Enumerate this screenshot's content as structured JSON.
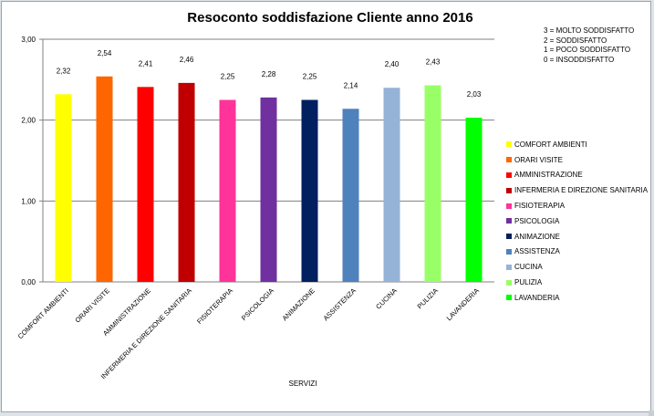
{
  "chart_data": {
    "type": "bar",
    "title": "Resoconto soddisfazione Cliente anno 2016",
    "xlabel": "SERVIZI",
    "ylabel": "",
    "ylim": [
      0,
      3
    ],
    "yticks": [
      "0,00",
      "1,00",
      "2,00",
      "3,00"
    ],
    "categories": [
      "COMFORT AMBIENTI",
      "ORARI VISITE",
      "AMMINISTRAZIONE",
      "INFERMERIA  E DIREZIONE  SANITARIA",
      "FISIOTERAPIA",
      "PSICOLOGIA",
      "ANIMAZIONE",
      "ASSISTENZA",
      "CUCINA",
      "PULIZIA",
      "LAVANDERIA"
    ],
    "values": [
      2.32,
      2.54,
      2.41,
      2.46,
      2.25,
      2.28,
      2.25,
      2.14,
      2.4,
      2.43,
      2.03
    ],
    "value_labels": [
      "2,32",
      "2,54",
      "2,41",
      "2,46",
      "2,25",
      "2,28",
      "2,25",
      "2,14",
      "2,40",
      "2,43",
      "2,03"
    ],
    "colors": [
      "#ffff00",
      "#ff6600",
      "#ff0000",
      "#c00000",
      "#ff3399",
      "#7030a0",
      "#002060",
      "#4f81bd",
      "#95b3d7",
      "#99ff66",
      "#00ff00"
    ],
    "grid": true,
    "legend_position": "right"
  },
  "scale_note": [
    "3 = MOLTO SODDISFATTO",
    "2 = SODDISFATTO",
    "1 = POCO SODDISFATTO",
    "0 = INSODDISFATTO"
  ]
}
